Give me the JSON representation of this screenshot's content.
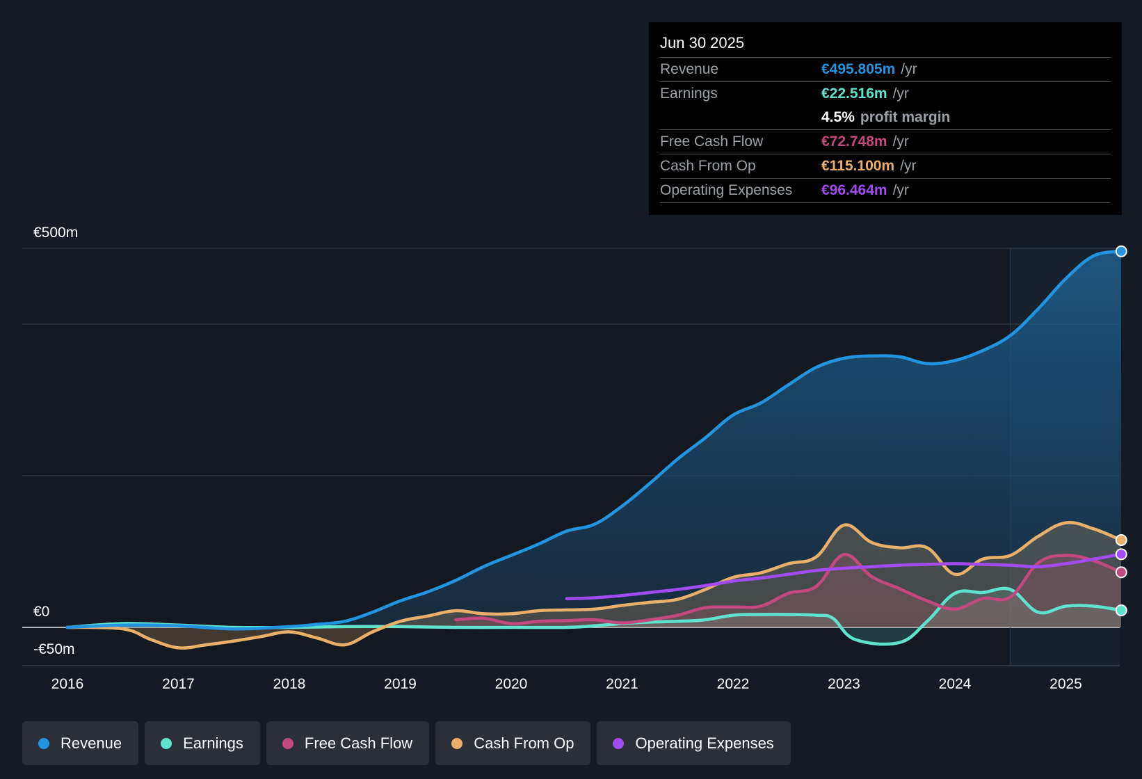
{
  "tooltip": {
    "date": "Jun 30 2025",
    "revenue": {
      "label": "Revenue",
      "value": "€495.805m",
      "unit": "/yr"
    },
    "earnings": {
      "label": "Earnings",
      "value": "€22.516m",
      "unit": "/yr"
    },
    "margin": {
      "value": "4.5%",
      "text": "profit margin"
    },
    "fcf": {
      "label": "Free Cash Flow",
      "value": "€72.748m",
      "unit": "/yr"
    },
    "cfo": {
      "label": "Cash From Op",
      "value": "€115.100m",
      "unit": "/yr"
    },
    "opex": {
      "label": "Operating Expenses",
      "value": "€96.464m",
      "unit": "/yr"
    }
  },
  "legend": {
    "revenue": "Revenue",
    "earnings": "Earnings",
    "fcf": "Free Cash Flow",
    "cfo": "Cash From Op",
    "opex": "Operating Expenses"
  },
  "colors": {
    "revenue": "#2394df",
    "earnings": "#5fe3cd",
    "fcf": "#c2487d",
    "cfo": "#e8b06a",
    "opex": "#a24bef",
    "background": "#151b24",
    "plot": "#141821"
  },
  "chart_data": {
    "type": "line",
    "title": "",
    "xlabel": "",
    "ylabel": "",
    "ylim": [
      -50,
      500
    ],
    "y_tick_labels": [
      {
        "value": 500,
        "label": "€500m"
      },
      {
        "value": 0,
        "label": "€0"
      },
      {
        "value": -50,
        "label": "-€50m"
      }
    ],
    "y_gridlines": [
      500,
      400,
      200,
      0
    ],
    "x_ticks": [
      2016,
      2017,
      2018,
      2019,
      2020,
      2021,
      2022,
      2023,
      2024,
      2025
    ],
    "x_range": [
      2015.6,
      2025.5
    ],
    "highlight_from": 2024.5,
    "series": [
      {
        "name": "Revenue",
        "key": "revenue",
        "fill": true,
        "points": [
          [
            2016,
            0
          ],
          [
            2016.5,
            3
          ],
          [
            2017,
            2
          ],
          [
            2017.5,
            -2
          ],
          [
            2018,
            1
          ],
          [
            2018.25,
            4
          ],
          [
            2018.5,
            8
          ],
          [
            2018.75,
            20
          ],
          [
            2019,
            35
          ],
          [
            2019.25,
            47
          ],
          [
            2019.5,
            62
          ],
          [
            2019.75,
            80
          ],
          [
            2020,
            95
          ],
          [
            2020.25,
            110
          ],
          [
            2020.5,
            127
          ],
          [
            2020.75,
            136
          ],
          [
            2021,
            160
          ],
          [
            2021.25,
            190
          ],
          [
            2021.5,
            222
          ],
          [
            2021.75,
            250
          ],
          [
            2022,
            280
          ],
          [
            2022.25,
            296
          ],
          [
            2022.5,
            320
          ],
          [
            2022.75,
            343
          ],
          [
            2023,
            355
          ],
          [
            2023.25,
            358
          ],
          [
            2023.5,
            357
          ],
          [
            2023.75,
            348
          ],
          [
            2024,
            352
          ],
          [
            2024.25,
            365
          ],
          [
            2024.5,
            385
          ],
          [
            2024.75,
            420
          ],
          [
            2025,
            460
          ],
          [
            2025.25,
            490
          ],
          [
            2025.5,
            496
          ]
        ]
      },
      {
        "name": "Earnings",
        "key": "earnings",
        "fill": true,
        "points": [
          [
            2016,
            0
          ],
          [
            2016.5,
            5
          ],
          [
            2017,
            3
          ],
          [
            2017.5,
            0
          ],
          [
            2018,
            0
          ],
          [
            2018.5,
            1
          ],
          [
            2019,
            1
          ],
          [
            2019.5,
            0
          ],
          [
            2020,
            0
          ],
          [
            2020.5,
            0
          ],
          [
            2020.75,
            2
          ],
          [
            2021,
            5
          ],
          [
            2021.25,
            7
          ],
          [
            2021.5,
            8
          ],
          [
            2021.75,
            10
          ],
          [
            2022,
            16
          ],
          [
            2022.25,
            17
          ],
          [
            2022.5,
            17
          ],
          [
            2022.75,
            16
          ],
          [
            2022.9,
            12
          ],
          [
            2023.1,
            -16
          ],
          [
            2023.5,
            -20
          ],
          [
            2023.75,
            8
          ],
          [
            2024,
            45
          ],
          [
            2024.25,
            46
          ],
          [
            2024.5,
            50
          ],
          [
            2024.75,
            20
          ],
          [
            2025,
            28
          ],
          [
            2025.25,
            28
          ],
          [
            2025.5,
            22.5
          ]
        ]
      },
      {
        "name": "Free Cash Flow",
        "key": "fcf",
        "fill": true,
        "points": [
          [
            2019.5,
            10
          ],
          [
            2019.75,
            12
          ],
          [
            2020,
            5
          ],
          [
            2020.25,
            8
          ],
          [
            2020.5,
            9
          ],
          [
            2020.75,
            10
          ],
          [
            2021,
            6
          ],
          [
            2021.25,
            10
          ],
          [
            2021.5,
            16
          ],
          [
            2021.75,
            26
          ],
          [
            2022,
            27
          ],
          [
            2022.25,
            28
          ],
          [
            2022.5,
            45
          ],
          [
            2022.75,
            54
          ],
          [
            2023,
            96
          ],
          [
            2023.25,
            67
          ],
          [
            2023.5,
            51
          ],
          [
            2023.75,
            35
          ],
          [
            2024,
            24
          ],
          [
            2024.25,
            38
          ],
          [
            2024.5,
            40
          ],
          [
            2024.75,
            85
          ],
          [
            2025,
            95
          ],
          [
            2025.25,
            88
          ],
          [
            2025.5,
            72.7
          ]
        ]
      },
      {
        "name": "Cash From Op",
        "key": "cfo",
        "fill": true,
        "points": [
          [
            2016,
            0
          ],
          [
            2016.5,
            -2
          ],
          [
            2016.75,
            -16
          ],
          [
            2017,
            -27
          ],
          [
            2017.25,
            -23
          ],
          [
            2017.5,
            -18
          ],
          [
            2017.75,
            -12
          ],
          [
            2018,
            -6
          ],
          [
            2018.25,
            -14
          ],
          [
            2018.5,
            -23
          ],
          [
            2018.75,
            -6
          ],
          [
            2019,
            8
          ],
          [
            2019.25,
            15
          ],
          [
            2019.5,
            22
          ],
          [
            2019.75,
            18
          ],
          [
            2020,
            18
          ],
          [
            2020.25,
            22
          ],
          [
            2020.5,
            23
          ],
          [
            2020.75,
            24
          ],
          [
            2021,
            29
          ],
          [
            2021.25,
            33
          ],
          [
            2021.5,
            37
          ],
          [
            2021.75,
            50
          ],
          [
            2022,
            66
          ],
          [
            2022.25,
            72
          ],
          [
            2022.5,
            84
          ],
          [
            2022.75,
            93
          ],
          [
            2023,
            135
          ],
          [
            2023.25,
            112
          ],
          [
            2023.5,
            105
          ],
          [
            2023.75,
            105
          ],
          [
            2024,
            70
          ],
          [
            2024.25,
            90
          ],
          [
            2024.5,
            95
          ],
          [
            2024.75,
            120
          ],
          [
            2025,
            138
          ],
          [
            2025.25,
            130
          ],
          [
            2025.5,
            115.1
          ]
        ]
      },
      {
        "name": "Operating Expenses",
        "key": "opex",
        "fill": false,
        "points": [
          [
            2020.5,
            38
          ],
          [
            2020.75,
            39
          ],
          [
            2021,
            42
          ],
          [
            2021.25,
            46
          ],
          [
            2021.5,
            50
          ],
          [
            2021.75,
            55
          ],
          [
            2022,
            61
          ],
          [
            2022.25,
            65
          ],
          [
            2022.5,
            70
          ],
          [
            2022.75,
            75
          ],
          [
            2023,
            78
          ],
          [
            2023.25,
            80
          ],
          [
            2023.5,
            82
          ],
          [
            2023.75,
            83
          ],
          [
            2024,
            84
          ],
          [
            2024.25,
            83
          ],
          [
            2024.5,
            82
          ],
          [
            2024.75,
            80
          ],
          [
            2025,
            84
          ],
          [
            2025.25,
            90
          ],
          [
            2025.5,
            96.5
          ]
        ]
      }
    ]
  }
}
